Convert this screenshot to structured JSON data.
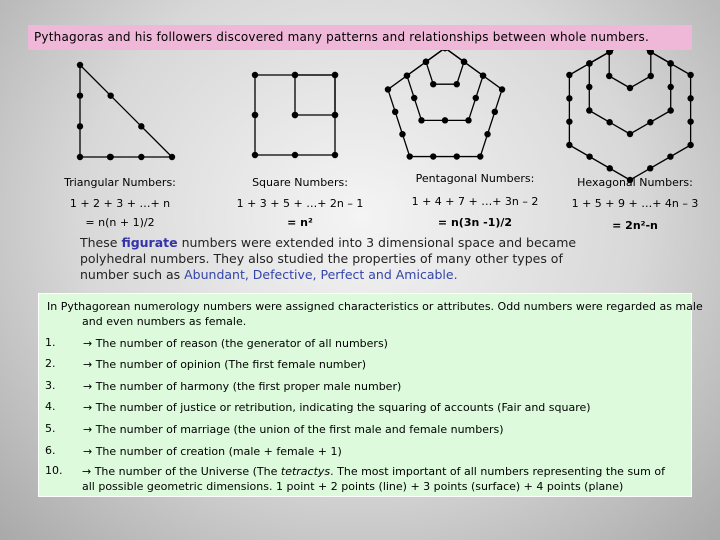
{
  "header": {
    "text": "Pythagoras and his followers discovered many patterns and relationships between whole numbers."
  },
  "columns": [
    {
      "title": "Triangular Numbers:",
      "sum": "1 + 2 + 3 + …+ n",
      "result": "= n(n + 1)/2"
    },
    {
      "title": "Square Numbers:",
      "sum": "1 + 3 + 5 + …+ 2n – 1",
      "result": "= n²"
    },
    {
      "title": "Pentagonal Numbers:",
      "sum": "1 + 4 + 7 + …+ 3n – 2",
      "result": "= n(3n -1)/2"
    },
    {
      "title": "Hexagonal Numbers:",
      "sum": "1 + 5 + 9 + …+ 4n – 3",
      "result": "= 2n²-n"
    }
  ],
  "paragraph": {
    "parts": [
      "These ",
      "figurate",
      " numbers were extended into 3 dimensional space and became polyhedral numbers. They also studied the properties of many other types of number such as ",
      "Abundant, Defective, Perfect and Amicable."
    ]
  },
  "box": {
    "intro": "In Pythagorean numerology numbers were assigned characteristics or attributes. Odd numbers were regarded as male and even numbers as female.",
    "items": [
      {
        "number": "1.",
        "parts": [
          "→ The number of reason (the generator of all numbers)"
        ]
      },
      {
        "number": "2.",
        "parts": [
          "→ The number of opinion (The first female number)"
        ]
      },
      {
        "number": "3.",
        "parts": [
          "→ The number of harmony (the first proper male number)"
        ]
      },
      {
        "number": "4.",
        "parts": [
          "→ The number of justice or retribution, indicating the squaring of accounts (Fair and square)"
        ]
      },
      {
        "number": "5.",
        "parts": [
          "→ The number of marriage (the union of the first male and female numbers)"
        ]
      },
      {
        "number": "6.",
        "parts": [
          "→ The number of creation (male + female + 1)"
        ]
      },
      {
        "number": "10.",
        "parts": [
          "→ The number of the Universe (The ",
          "tetractys",
          ". The most important of all numbers representing the sum of all possible geometric dimensions. 1 point + 2 points (line) + 3 points (surface) + 4 points (plane)"
        ]
      }
    ]
  }
}
